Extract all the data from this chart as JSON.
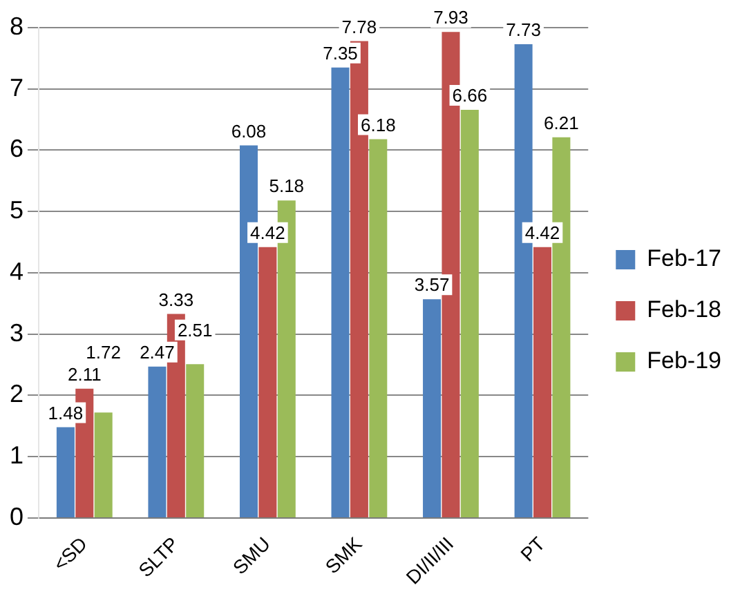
{
  "chart_data": {
    "type": "bar",
    "categories": [
      "<SD",
      "SLTP",
      "SMU",
      "SMK",
      "DI/II/III",
      "PT"
    ],
    "series": [
      {
        "name": "Feb-17",
        "color": "#4f81bd",
        "values": [
          1.48,
          2.47,
          6.08,
          7.35,
          3.57,
          7.73
        ]
      },
      {
        "name": "Feb-18",
        "color": "#c0504d",
        "values": [
          2.11,
          3.33,
          4.42,
          7.78,
          7.93,
          4.42
        ]
      },
      {
        "name": "Feb-19",
        "color": "#9bbb59",
        "values": [
          1.72,
          2.51,
          5.18,
          6.18,
          6.66,
          6.21
        ]
      }
    ],
    "ylim": [
      0,
      8
    ],
    "yticks": [
      0,
      1,
      2,
      3,
      4,
      5,
      6,
      7,
      8
    ],
    "grid": "y",
    "legend": "right",
    "data_labels": true
  }
}
